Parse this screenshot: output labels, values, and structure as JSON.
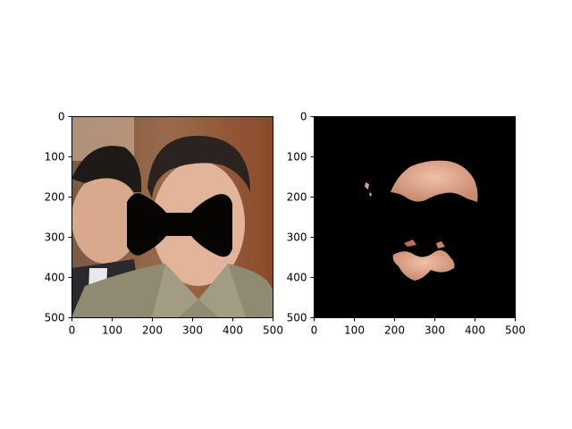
{
  "chart_data": [
    {
      "type": "image",
      "panel": "left",
      "content": "photo of two men with a black bow-tie shaped mask covering the face region",
      "xlim": [
        0,
        500
      ],
      "ylim": [
        500,
        0
      ],
      "xticks": [
        "0",
        "100",
        "200",
        "300",
        "400",
        "500"
      ],
      "yticks": [
        "0",
        "100",
        "200",
        "300",
        "400",
        "500"
      ],
      "mask_color": "#070404"
    },
    {
      "type": "image",
      "panel": "right",
      "content": "black background with isolated face skin segments (forehead, chin, lips)",
      "xlim": [
        0,
        500
      ],
      "ylim": [
        500,
        0
      ],
      "xticks": [
        "0",
        "100",
        "200",
        "300",
        "400",
        "500"
      ],
      "yticks": [
        "0",
        "100",
        "200",
        "300",
        "400",
        "500"
      ],
      "background_color": "#000000",
      "skin_color": "#d9a089"
    }
  ]
}
